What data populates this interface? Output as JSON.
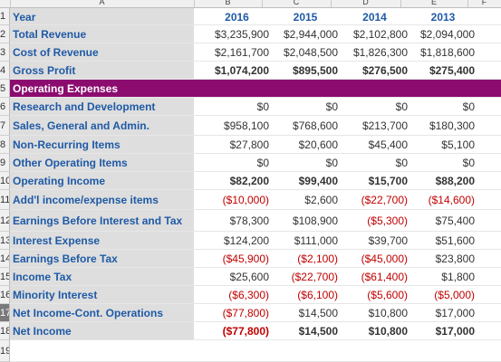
{
  "columns": [
    "A",
    "B",
    "C",
    "D",
    "E",
    "F"
  ],
  "years": [
    "2016",
    "2015",
    "2014",
    "2013"
  ],
  "rows": [
    {
      "num": "1",
      "label": "Year",
      "values": [
        "2016",
        "2015",
        "2014",
        "2013"
      ],
      "type": "header"
    },
    {
      "num": "2",
      "label": "Total Revenue",
      "values": [
        "$3,235,900",
        "$2,944,000",
        "$2,102,800",
        "$2,094,000"
      ],
      "type": "normal"
    },
    {
      "num": "3",
      "label": "Cost of Revenue",
      "values": [
        "$2,161,700",
        "$2,048,500",
        "$1,826,300",
        "$1,818,600"
      ],
      "type": "normal"
    },
    {
      "num": "4",
      "label": "Gross Profit",
      "values": [
        "$1,074,200",
        "$895,500",
        "$276,500",
        "$275,400"
      ],
      "type": "bold"
    },
    {
      "num": "5",
      "label": "Operating Expenses",
      "values": [
        "",
        "",
        "",
        ""
      ],
      "type": "section"
    },
    {
      "num": "6",
      "label": "Research and Development",
      "values": [
        "$0",
        "$0",
        "$0",
        "$0"
      ],
      "type": "normal"
    },
    {
      "num": "7",
      "label": "Sales, General and Admin.",
      "values": [
        "$958,100",
        "$768,600",
        "$213,700",
        "$180,300"
      ],
      "type": "normal"
    },
    {
      "num": "8",
      "label": "Non-Recurring Items",
      "values": [
        "$27,800",
        "$20,600",
        "$45,400",
        "$5,100"
      ],
      "type": "normal"
    },
    {
      "num": "9",
      "label": "Other Operating Items",
      "values": [
        "$0",
        "$0",
        "$0",
        "$0"
      ],
      "type": "normal"
    },
    {
      "num": "10",
      "label": "Operating Income",
      "values": [
        "$82,200",
        "$99,400",
        "$15,700",
        "$88,200"
      ],
      "type": "bold"
    },
    {
      "num": "11",
      "label": "Add'l income/expense items",
      "values": [
        "($10,000)",
        "$2,600",
        "($22,700)",
        "($14,600)"
      ],
      "type": "normal"
    },
    {
      "num": "12",
      "label": "Earnings Before Interest and Tax",
      "values": [
        "$78,300",
        "$108,900",
        "($5,300)",
        "$75,400"
      ],
      "type": "normal"
    },
    {
      "num": "13",
      "label": "Interest Expense",
      "values": [
        "$124,200",
        "$111,000",
        "$39,700",
        "$51,600"
      ],
      "type": "normal"
    },
    {
      "num": "14",
      "label": "Earnings Before Tax",
      "values": [
        "($45,900)",
        "($2,100)",
        "($45,000)",
        "$23,800"
      ],
      "type": "normal"
    },
    {
      "num": "15",
      "label": "Income Tax",
      "values": [
        "$25,600",
        "($22,700)",
        "($61,400)",
        "$1,800"
      ],
      "type": "normal"
    },
    {
      "num": "16",
      "label": "Minority Interest",
      "values": [
        "($6,300)",
        "($6,100)",
        "($5,600)",
        "($5,000)"
      ],
      "type": "normal"
    },
    {
      "num": "17",
      "label": "Net Income-Cont. Operations",
      "values": [
        "($77,800)",
        "$14,500",
        "$10,800",
        "$17,000"
      ],
      "type": "normal"
    },
    {
      "num": "18",
      "label": "Net Income",
      "values": [
        "($77,800)",
        "$14,500",
        "$10,800",
        "$17,000"
      ],
      "type": "bold"
    },
    {
      "num": "19",
      "label": "",
      "values": [
        "",
        "",
        "",
        ""
      ],
      "type": "empty"
    }
  ],
  "colors": {
    "label_text": "#1f5aa6",
    "label_bg": "#dedede",
    "section_bg": "#8b0b6f",
    "negative": "#c00000"
  }
}
